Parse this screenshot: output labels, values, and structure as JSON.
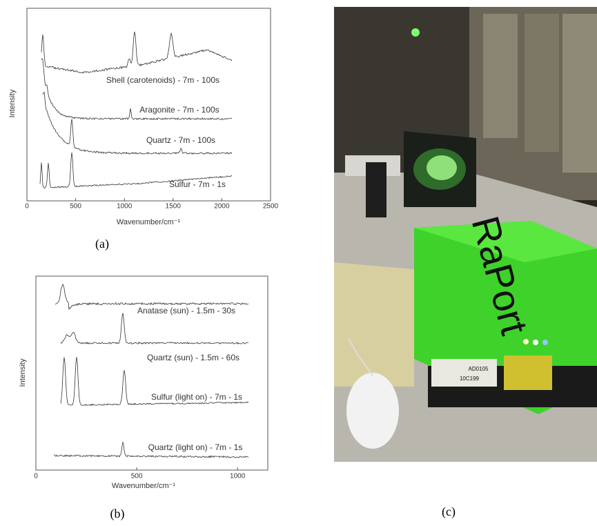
{
  "panels": [
    {
      "id": "(a)",
      "ylabel": "Intensity",
      "xlabel": "Wavenumber/cm⁻¹",
      "xlim": [
        0,
        2500
      ],
      "xticks": [
        0,
        500,
        1000,
        1500,
        2000,
        2500
      ],
      "traces": [
        "Shell (carotenoids) - 7m  - 100s",
        "Aragonite - 7m - 100s",
        "Quartz - 7m - 100s",
        "Sulfur - 7m - 1s"
      ]
    },
    {
      "id": "(b)",
      "ylabel": "Intensity",
      "xlabel": "Wavenumber/cm⁻¹",
      "xlim": [
        0,
        1150
      ],
      "xticks": [
        0,
        500,
        1000
      ],
      "traces": [
        "Anatase (sun) - 1.5m  - 30s",
        "Quartz (sun) - 1.5m - 60s",
        "Sulfur (light on) - 7m - 1s",
        "Quartz (light on)  - 7m - 1s"
      ]
    },
    {
      "id": "(c)",
      "photo_texts": [
        "RaPort",
        "AD0105",
        "10C199"
      ]
    }
  ]
}
